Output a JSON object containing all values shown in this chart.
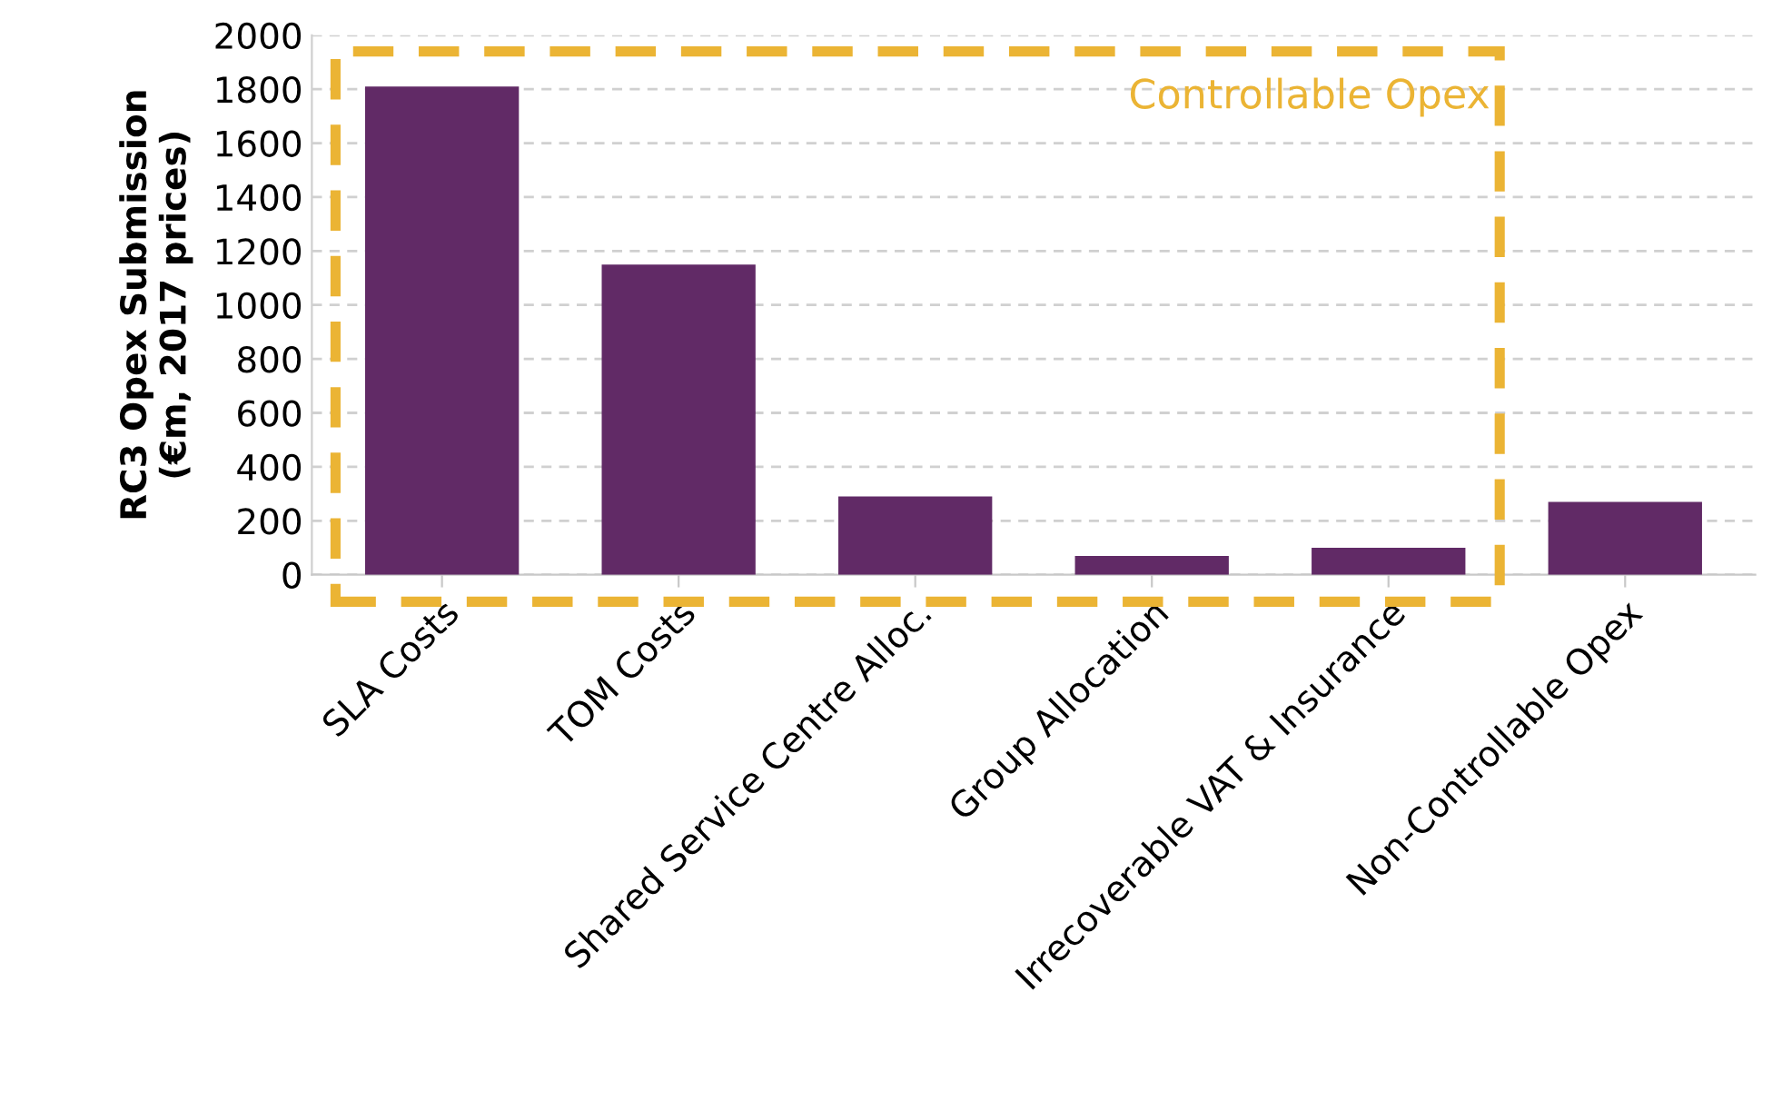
{
  "chart_data": {
    "type": "bar",
    "ylabel": "RC3 Opex Submission\n(€m, 2017 prices)",
    "categories": [
      "SLA Costs",
      "TOM Costs",
      "Shared Service Centre Alloc.",
      "Group Allocation",
      "Irrecoverable VAT & Insurance",
      "Non-Controllable Opex"
    ],
    "values": [
      1810,
      1150,
      290,
      70,
      100,
      270
    ],
    "color": "#612a66",
    "ylim": [
      0,
      2000
    ],
    "yticks": [
      0,
      200,
      400,
      600,
      800,
      1000,
      1200,
      1400,
      1600,
      1800,
      2000
    ],
    "grid": "y",
    "legend": false,
    "annotations": [
      "Controllable Opex"
    ]
  }
}
